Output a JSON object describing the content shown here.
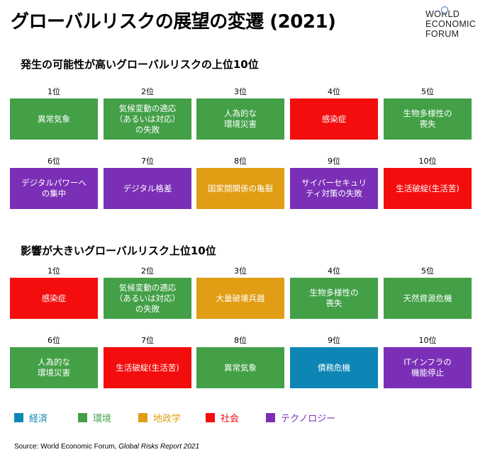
{
  "title": "グローバルリスクの展望の変遷 (2021)",
  "logo": {
    "lines": [
      "WORLD",
      "ECONOMIC",
      "FORUM"
    ]
  },
  "colors": {
    "economic": "#0d86b6",
    "environmental": "#43a047",
    "geopolitical": "#e19d13",
    "societal": "#f30d0d",
    "technological": "#7b2fb6"
  },
  "likelihood": {
    "heading": "発生の可能性が高いグローバルリスクの上位10位",
    "items": [
      {
        "rank": "1位",
        "label": "異常気象",
        "category": "environmental"
      },
      {
        "rank": "2位",
        "label": "気候変動の適応\n（あるいは対応）\nの失敗",
        "category": "environmental"
      },
      {
        "rank": "3位",
        "label": "人為的な\n環境災害",
        "category": "environmental"
      },
      {
        "rank": "4位",
        "label": "感染症",
        "category": "societal"
      },
      {
        "rank": "5位",
        "label": "生物多様性の\n喪失",
        "category": "environmental"
      },
      {
        "rank": "6位",
        "label": "デジタルパワーへ\nの集中",
        "category": "technological"
      },
      {
        "rank": "7位",
        "label": "デジタル格差",
        "category": "technological"
      },
      {
        "rank": "8位",
        "label": "国家間関係の亀裂",
        "category": "geopolitical"
      },
      {
        "rank": "9位",
        "label": "サイバーセキュリ\nティ対策の失敗",
        "category": "technological"
      },
      {
        "rank": "10位",
        "label": "生活破綻(生活苦)",
        "category": "societal"
      }
    ]
  },
  "impact": {
    "heading": "影響が大きいグローバルリスク上位10位",
    "items": [
      {
        "rank": "1位",
        "label": "感染症",
        "category": "societal"
      },
      {
        "rank": "2位",
        "label": "気候変動の適応\n（あるいは対応）\nの失敗",
        "category": "environmental"
      },
      {
        "rank": "3位",
        "label": "大量破壊兵器",
        "category": "geopolitical"
      },
      {
        "rank": "4位",
        "label": "生物多様性の\n喪失",
        "category": "environmental"
      },
      {
        "rank": "5位",
        "label": "天然資源危機",
        "category": "environmental"
      },
      {
        "rank": "6位",
        "label": "人為的な\n環境災害",
        "category": "environmental"
      },
      {
        "rank": "7位",
        "label": "生活破綻(生活苦)",
        "category": "societal"
      },
      {
        "rank": "8位",
        "label": "異常気象",
        "category": "environmental"
      },
      {
        "rank": "9位",
        "label": "債務危機",
        "category": "economic"
      },
      {
        "rank": "10位",
        "label": "ITインフラの\n機能停止",
        "category": "technological"
      }
    ]
  },
  "legend": [
    {
      "label": "経済",
      "category": "economic"
    },
    {
      "label": "環境",
      "category": "environmental"
    },
    {
      "label": "地政学",
      "category": "geopolitical"
    },
    {
      "label": "社会",
      "category": "societal"
    },
    {
      "label": "テクノロジー",
      "category": "technological"
    }
  ],
  "source": {
    "prefix": "Source: World Economic Forum, ",
    "report": "Global Risks Report 2021"
  }
}
